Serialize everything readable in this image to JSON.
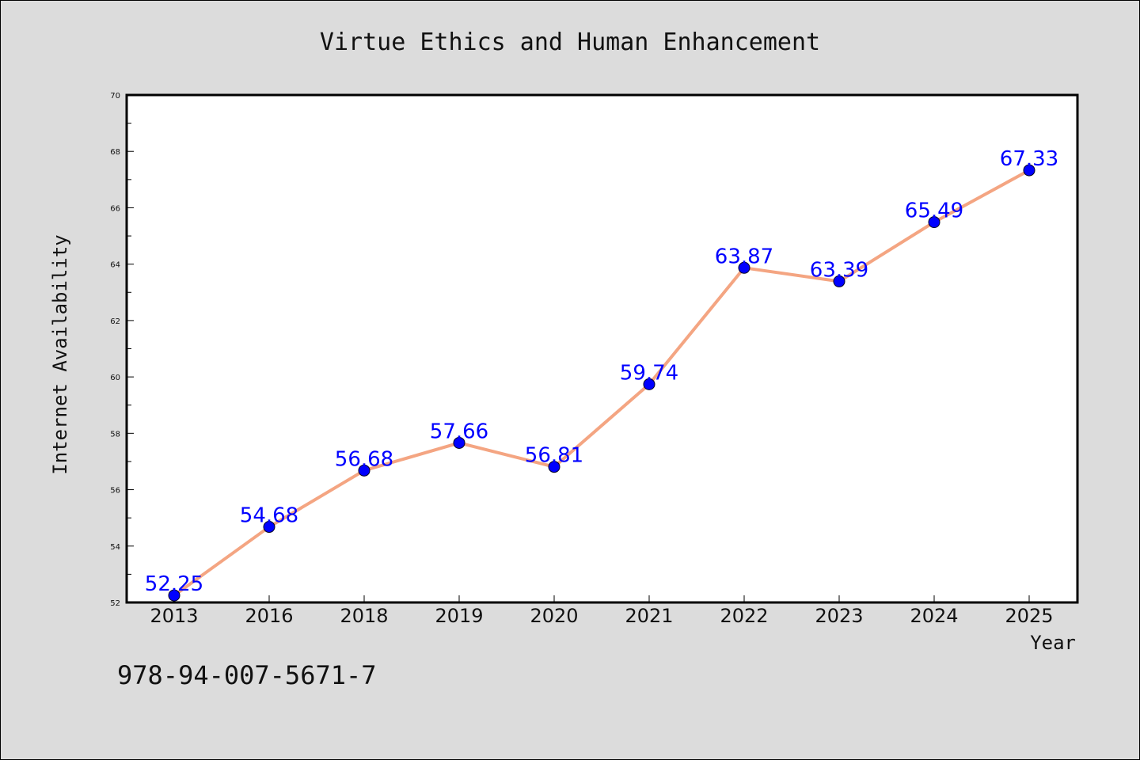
{
  "chart_data": {
    "type": "line",
    "title": "Virtue Ethics and Human Enhancement",
    "xlabel": "Year",
    "ylabel": "Internet Availability",
    "categories": [
      "2013",
      "2016",
      "2018",
      "2019",
      "2020",
      "2021",
      "2022",
      "2023",
      "2024",
      "2025"
    ],
    "series": [
      {
        "values": [
          52.25,
          54.68,
          56.68,
          57.66,
          56.81,
          59.74,
          63.87,
          63.39,
          65.49,
          67.33
        ],
        "labels": [
          "52.25",
          "54.68",
          "56.68",
          "57.66",
          "56.81",
          "59.74",
          "63.87",
          "63.39",
          "65.49",
          "67.33"
        ]
      }
    ],
    "ylim": [
      52,
      70
    ],
    "yticks": [
      "52",
      "54",
      "56",
      "58",
      "60",
      "62",
      "64",
      "66",
      "68",
      "70"
    ],
    "grid": false,
    "legend": "none",
    "colors": {
      "line": "#f4a582",
      "marker": "#0000ff",
      "label": "#0000ff",
      "background": "#dcdcdc",
      "plot_background": "#ffffff"
    }
  },
  "footer": {
    "isbn": "978-94-007-5671-7"
  }
}
